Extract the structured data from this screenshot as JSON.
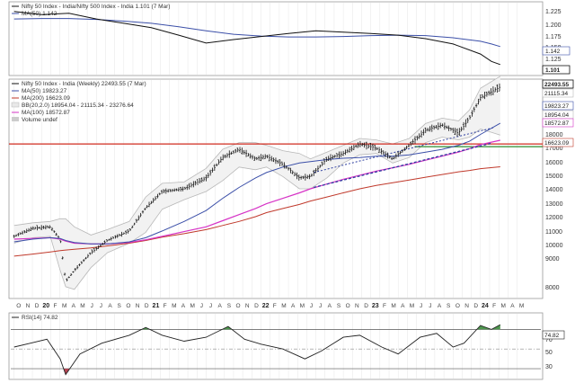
{
  "colors": {
    "price": "#111111",
    "ma50": "#3b4fa8",
    "ma200": "#c0392b",
    "ma100": "#d633c6",
    "bb": "#b8b8b8",
    "resistance": "#d12b1f",
    "support": "#2e8b2e",
    "trend": "#2e3fa0",
    "rsi": "#222222",
    "rsi_over": "#3a8a3a",
    "rsi_under": "#b03040",
    "grid": "#e6e6e6"
  },
  "chart_data": [
    {
      "type": "line",
      "panel": "relative-strength",
      "legend": [
        "Nifty 50 Index - India/Nifty 500 Index - India 1.101 (7 Mar)",
        "MA(50) 1.142"
      ],
      "ylim": [
        1.08,
        1.24
      ],
      "y_ticks": [
        "1.225",
        "1.200",
        "1.175",
        "1.150",
        "1.125"
      ],
      "last_tags": [
        "1.142",
        "1.101"
      ],
      "x": [
        2019.75,
        2020.0,
        2020.25,
        2020.5,
        2020.75,
        2021.0,
        2021.25,
        2021.5,
        2021.75,
        2022.0,
        2022.25,
        2022.5,
        2022.75,
        2023.0,
        2023.25,
        2023.5,
        2023.75,
        2024.0,
        2024.1,
        2024.18
      ],
      "series": [
        {
          "name": "Ratio",
          "values": [
            1.222,
            1.215,
            1.218,
            1.205,
            1.195,
            1.185,
            1.168,
            1.15,
            1.158,
            1.165,
            1.172,
            1.178,
            1.175,
            1.172,
            1.168,
            1.16,
            1.148,
            1.125,
            1.108,
            1.101
          ]
        },
        {
          "name": "MA(50)",
          "values": [
            1.205,
            1.206,
            1.206,
            1.204,
            1.2,
            1.195,
            1.187,
            1.178,
            1.17,
            1.166,
            1.164,
            1.164,
            1.165,
            1.167,
            1.168,
            1.167,
            1.162,
            1.154,
            1.148,
            1.142
          ]
        }
      ]
    },
    {
      "type": "line",
      "panel": "price",
      "legend": [
        "Nifty 50 Index - India (Weekly) 22493.55 (7 Mar)",
        "MA(50) 19823.27",
        "MA(200) 16623.09",
        "BB(20,2.0) 18954.04 - 21115.34 - 23276.64",
        "MA(100) 18572.87",
        "Volume undef"
      ],
      "ylim": [
        7000,
        23000
      ],
      "y_ticks": [
        "21000",
        "20000",
        "19000",
        "18000",
        "17000",
        "16000",
        "15000",
        "14000",
        "13000",
        "12000",
        "11000",
        "10000",
        "9000",
        "8000"
      ],
      "last_tags": [
        "22493.55",
        "21115.34",
        "19823.27",
        "18954.04",
        "18572.87",
        "16623.09"
      ],
      "x": [
        2019.75,
        2019.92,
        2020.08,
        2020.17,
        2020.22,
        2020.3,
        2020.45,
        2020.6,
        2020.8,
        2020.95,
        2021.1,
        2021.3,
        2021.5,
        2021.65,
        2021.8,
        2021.95,
        2022.05,
        2022.2,
        2022.35,
        2022.45,
        2022.6,
        2022.75,
        2022.9,
        2023.05,
        2023.2,
        2023.35,
        2023.5,
        2023.65,
        2023.8,
        2023.9,
        2024.0,
        2024.18
      ],
      "series": [
        {
          "name": "Price",
          "values": [
            11500,
            12100,
            12200,
            11300,
            8200,
            9000,
            10300,
            11200,
            11900,
            13600,
            14800,
            15000,
            15800,
            17300,
            17900,
            17200,
            17400,
            16800,
            15800,
            15900,
            17200,
            17600,
            18300,
            18000,
            17200,
            18200,
            19300,
            19700,
            19100,
            20200,
            21700,
            22493
          ]
        },
        {
          "name": "MA(50)",
          "values": [
            11100,
            11300,
            11400,
            11350,
            11200,
            11050,
            10950,
            10950,
            11100,
            11400,
            11900,
            12600,
            13400,
            14300,
            15100,
            15800,
            16200,
            16600,
            16900,
            17000,
            17150,
            17250,
            17300,
            17400,
            17400,
            17500,
            17700,
            17900,
            18200,
            18500,
            19000,
            19823
          ]
        },
        {
          "name": "MA(100)",
          "values": [
            11300,
            11350,
            11400,
            11300,
            11150,
            11000,
            10950,
            10950,
            11050,
            11250,
            11500,
            11850,
            12200,
            12650,
            13100,
            13550,
            13900,
            14300,
            14700,
            15000,
            15350,
            15700,
            16000,
            16300,
            16550,
            16800,
            17100,
            17400,
            17700,
            17950,
            18250,
            18572
          ]
        },
        {
          "name": "MA(200)",
          "values": [
            10050,
            10200,
            10350,
            10450,
            10500,
            10550,
            10650,
            10800,
            11000,
            11200,
            11450,
            11700,
            12000,
            12300,
            12600,
            12950,
            13250,
            13550,
            13850,
            14100,
            14400,
            14700,
            15000,
            15250,
            15450,
            15650,
            15850,
            16050,
            16250,
            16350,
            16480,
            16623
          ]
        },
        {
          "name": "BB upper",
          "values": [
            12300,
            12500,
            12600,
            12800,
            12800,
            12200,
            11600,
            12000,
            12600,
            14400,
            15400,
            15500,
            16500,
            17900,
            18400,
            18400,
            18200,
            17800,
            17600,
            17200,
            17700,
            18200,
            18700,
            18600,
            18300,
            18700,
            19800,
            20200,
            20000,
            20800,
            22400,
            23276
          ]
        },
        {
          "name": "BB lower",
          "values": [
            11000,
            11400,
            11500,
            9000,
            7800,
            7600,
            9200,
            10300,
            11000,
            11800,
            13500,
            14200,
            14800,
            15600,
            16600,
            16400,
            16600,
            15900,
            15000,
            15000,
            15800,
            16900,
            17500,
            17600,
            16900,
            17300,
            18400,
            18800,
            18600,
            18800,
            19400,
            18954
          ]
        }
      ],
      "horizontal_lines": [
        {
          "level": 18300
        },
        {
          "level": 18100
        }
      ],
      "trend_lines": [
        {
          "from": [
            2022.48,
            15100
          ],
          "to": [
            2024.1,
            18350
          ]
        },
        {
          "from": [
            2022.48,
            16200
          ],
          "to": [
            2024.12,
            19500
          ]
        }
      ]
    },
    {
      "type": "line",
      "panel": "rsi",
      "legend": [
        "RSI(14) 74.82"
      ],
      "ylim": [
        20,
        85
      ],
      "y_ticks": [
        "70",
        "50",
        "30"
      ],
      "overbought": 70,
      "oversold": 30,
      "last_tags": [
        "74.82"
      ],
      "x": [
        2019.75,
        2019.9,
        2020.05,
        2020.17,
        2020.22,
        2020.35,
        2020.55,
        2020.8,
        2020.95,
        2021.1,
        2021.3,
        2021.5,
        2021.7,
        2021.85,
        2022.0,
        2022.2,
        2022.4,
        2022.55,
        2022.75,
        2022.9,
        2023.1,
        2023.25,
        2023.45,
        2023.6,
        2023.75,
        2023.85,
        2024.0,
        2024.1,
        2024.18
      ],
      "series": [
        {
          "name": "RSI",
          "values": [
            52,
            56,
            60,
            40,
            24,
            45,
            56,
            64,
            72,
            64,
            58,
            62,
            73,
            60,
            55,
            50,
            40,
            48,
            62,
            64,
            52,
            45,
            62,
            66,
            52,
            56,
            74,
            70,
            74.82
          ]
        }
      ]
    }
  ],
  "x_axis": {
    "months": [
      "O",
      "N",
      "D",
      "20",
      "F",
      "M",
      "A",
      "M",
      "J",
      "J",
      "A",
      "S",
      "O",
      "N",
      "D",
      "21",
      "F",
      "M",
      "A",
      "M",
      "J",
      "J",
      "A",
      "S",
      "O",
      "N",
      "D",
      "22",
      "F",
      "M",
      "A",
      "M",
      "J",
      "J",
      "A",
      "S",
      "O",
      "N",
      "D",
      "23",
      "F",
      "M",
      "A",
      "M",
      "J",
      "J",
      "A",
      "S",
      "O",
      "N",
      "D",
      "24",
      "F",
      "M",
      "A",
      "M"
    ],
    "years": [
      "20",
      "21",
      "22",
      "23",
      "24"
    ]
  }
}
